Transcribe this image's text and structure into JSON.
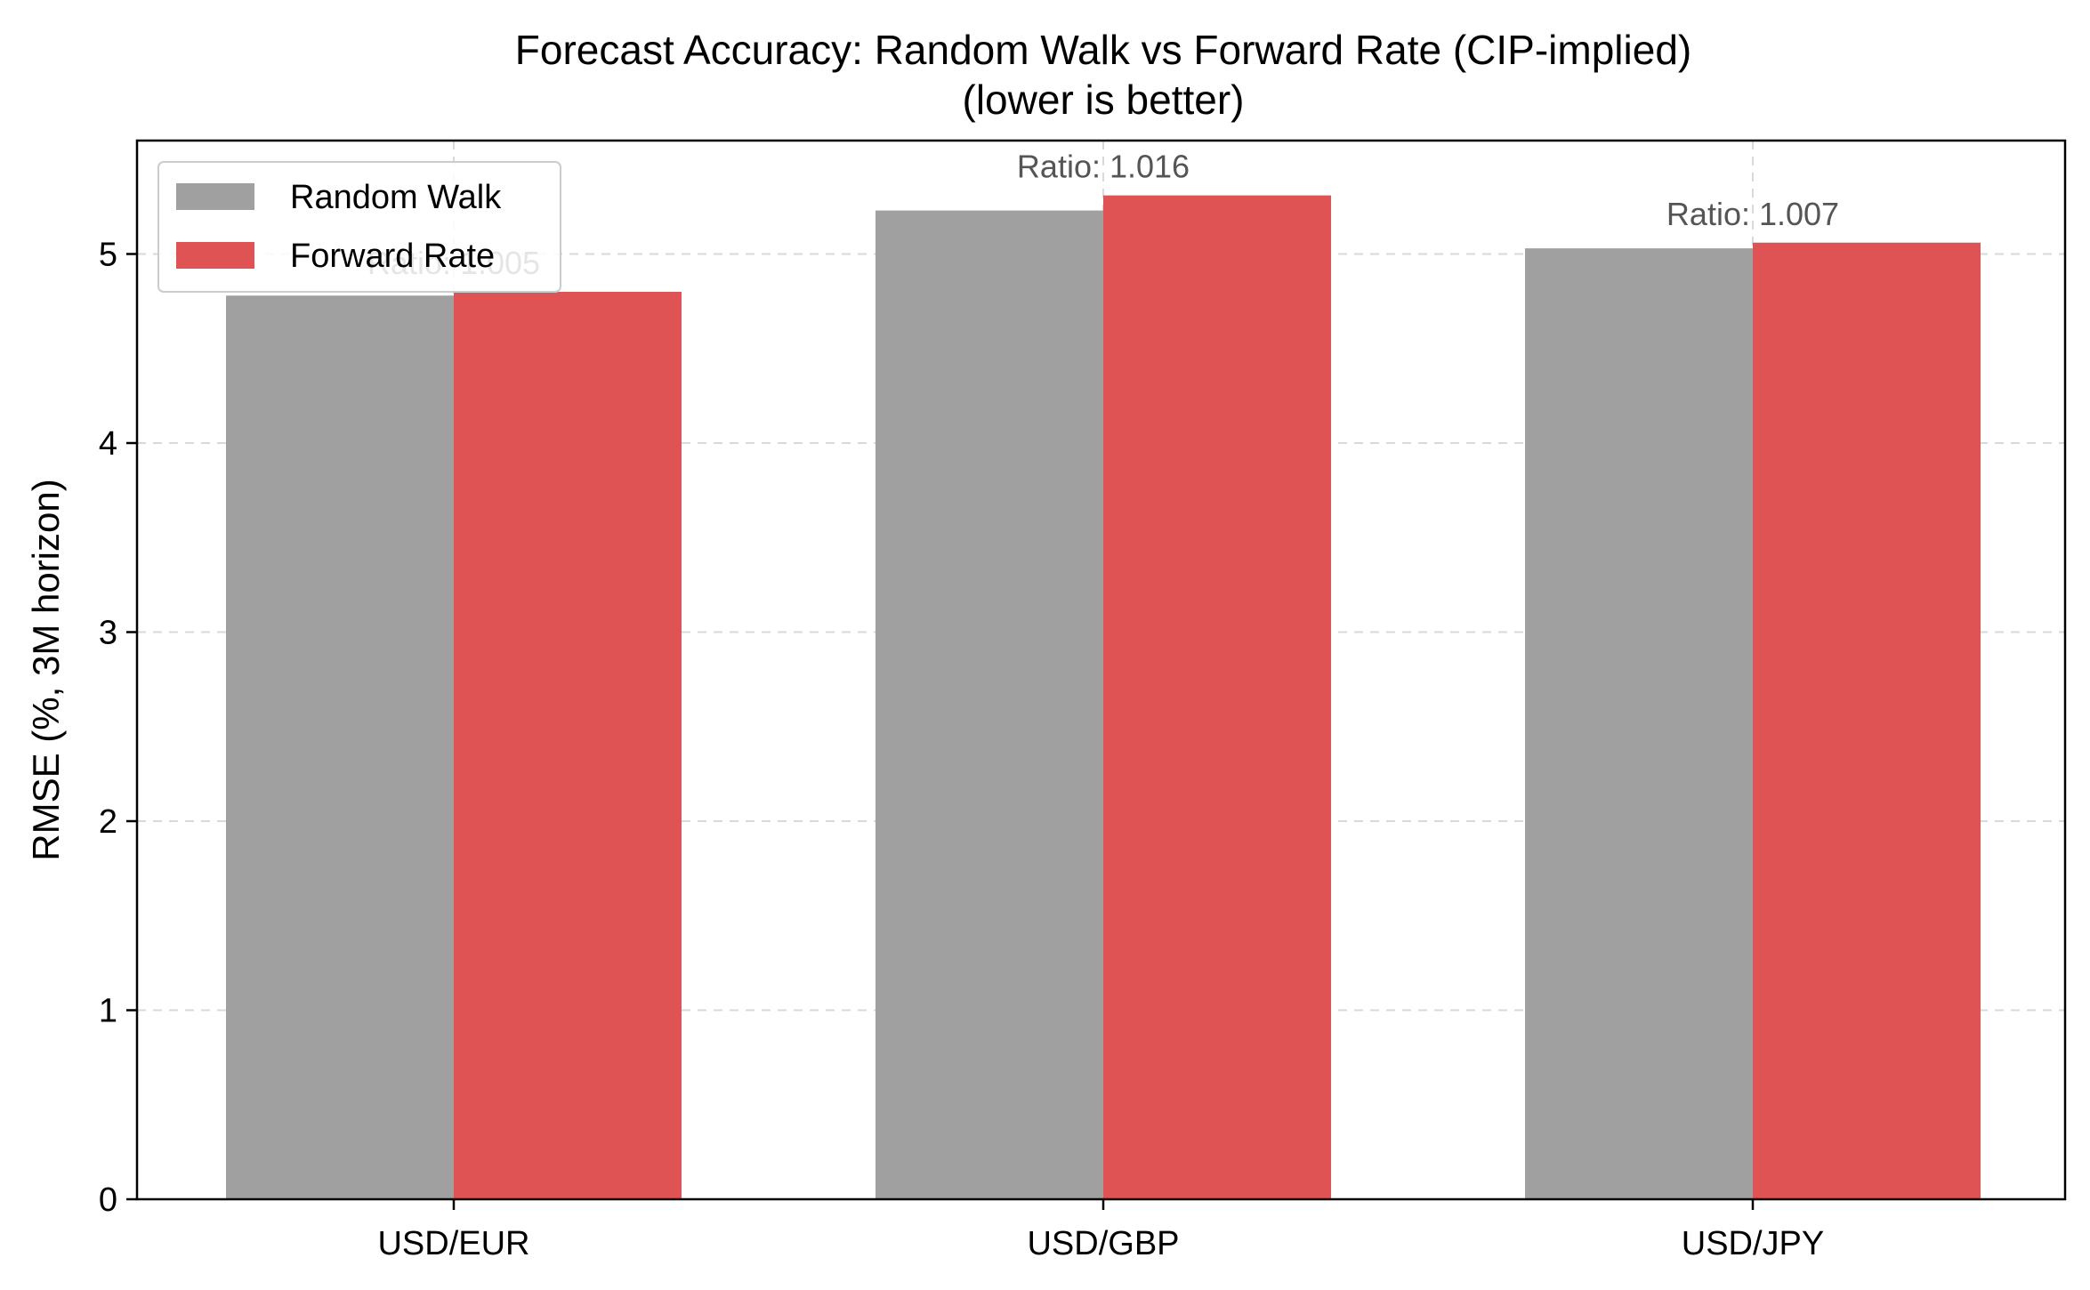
{
  "chart_data": {
    "type": "bar",
    "title_line1": "Forecast Accuracy: Random Walk vs Forward Rate (CIP-implied)",
    "title_line2": "(lower is better)",
    "xlabel": "",
    "ylabel": "RMSE (%, 3M horizon)",
    "categories": [
      "USD/EUR",
      "USD/GBP",
      "USD/JPY"
    ],
    "series": [
      {
        "name": "Random Walk",
        "color": "#a0a0a0",
        "values": [
          4.78,
          5.23,
          5.03
        ]
      },
      {
        "name": "Forward Rate",
        "color": "#e05355",
        "values": [
          4.8,
          5.31,
          5.06
        ]
      }
    ],
    "ratio_labels": [
      "Ratio: 1.005",
      "Ratio: 1.016",
      "Ratio: 1.007"
    ],
    "ylim": [
      0,
      5.6
    ],
    "yticks": [
      0,
      1,
      2,
      3,
      4,
      5
    ],
    "grid": true,
    "legend_position": "top-left"
  }
}
